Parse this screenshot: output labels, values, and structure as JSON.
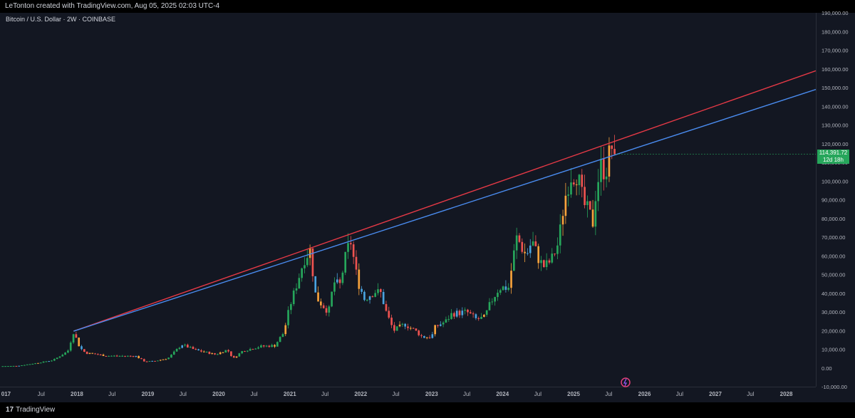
{
  "header": {
    "attribution": "LeTonton created with TradingView.com, Aug 05, 2025 02:03 UTC-4"
  },
  "chart_title": "Bitcoin / U.S. Dollar · 2W · COINBASE",
  "footer": {
    "brand_logo": "17",
    "brand_name": "TradingView"
  },
  "price_label": {
    "price": "114,391.72",
    "countdown": "12d 18h"
  },
  "colors": {
    "background": "#131722",
    "red_line": "#e63946",
    "blue_line": "#4a8cf0",
    "up_candle": "#26a65b",
    "down_candle": "#ef5350",
    "orange_candle": "#f7a23b",
    "blue_candle": "#4aa3df",
    "price_tag": "#26a65b"
  },
  "icons": {
    "watermark": "tradingview-replay-icon"
  },
  "chart_data": {
    "type": "candlestick",
    "y_axis": {
      "range": [
        -10000,
        190000
      ],
      "tick_values": [
        -10000,
        0,
        10000,
        20000,
        30000,
        40000,
        50000,
        60000,
        70000,
        80000,
        90000,
        100000,
        110000,
        120000,
        130000,
        140000,
        150000,
        160000,
        170000,
        180000,
        190000
      ],
      "tick_labels": [
        "-10,000.00",
        "0.00",
        "10,000.00",
        "20,000.00",
        "30,000.00",
        "40,000.00",
        "50,000.00",
        "60,000.00",
        "70,000.00",
        "80,000.00",
        "90,000.00",
        "100,000.00",
        "110,000.00",
        "120,000.00",
        "130,000.00",
        "140,000.00",
        "150,000.00",
        "160,000.00",
        "170,000.00",
        "180,000.00",
        "190,000.00"
      ]
    },
    "x_axis": {
      "range": [
        "2016-12-01",
        "2028-06-01"
      ],
      "ticks": [
        {
          "date": "2017-01-01",
          "label": "017"
        },
        {
          "date": "2017-07-01",
          "label": "Jul"
        },
        {
          "date": "2018-01-01",
          "label": "2018"
        },
        {
          "date": "2018-07-01",
          "label": "Jul"
        },
        {
          "date": "2019-01-01",
          "label": "2019"
        },
        {
          "date": "2019-07-01",
          "label": "Jul"
        },
        {
          "date": "2020-01-01",
          "label": "2020"
        },
        {
          "date": "2020-07-01",
          "label": "Jul"
        },
        {
          "date": "2021-01-01",
          "label": "2021"
        },
        {
          "date": "2021-07-01",
          "label": "Jul"
        },
        {
          "date": "2022-01-01",
          "label": "2022"
        },
        {
          "date": "2022-07-01",
          "label": "Jul"
        },
        {
          "date": "2023-01-01",
          "label": "2023"
        },
        {
          "date": "2023-07-01",
          "label": "Jul"
        },
        {
          "date": "2024-01-01",
          "label": "2024"
        },
        {
          "date": "2024-07-01",
          "label": "Jul"
        },
        {
          "date": "2025-01-01",
          "label": "2025"
        },
        {
          "date": "2025-07-01",
          "label": "Jul"
        },
        {
          "date": "2026-01-01",
          "label": "2026"
        },
        {
          "date": "2026-07-01",
          "label": "Jul"
        },
        {
          "date": "2027-01-01",
          "label": "2027"
        },
        {
          "date": "2027-07-01",
          "label": "Jul"
        },
        {
          "date": "2028-01-01",
          "label": "2028"
        }
      ]
    },
    "trendlines": [
      {
        "color": "red",
        "points": [
          [
            "2017-12-15",
            19700
          ],
          [
            "2028-06-01",
            159000
          ]
        ]
      },
      {
        "color": "blue",
        "points": [
          [
            "2017-12-15",
            19700
          ],
          [
            "2028-06-01",
            149000
          ]
        ]
      }
    ],
    "price_path": [
      [
        "2016-12-01",
        950
      ],
      [
        "2017-03-01",
        1100
      ],
      [
        "2017-06-01",
        2500
      ],
      [
        "2017-09-01",
        4200
      ],
      [
        "2017-11-15",
        9000
      ],
      [
        "2017-12-15",
        19500
      ],
      [
        "2018-01-15",
        11000
      ],
      [
        "2018-02-15",
        8000
      ],
      [
        "2018-04-01",
        7500
      ],
      [
        "2018-06-01",
        6500
      ],
      [
        "2018-09-01",
        6400
      ],
      [
        "2018-11-01",
        6300
      ],
      [
        "2018-12-15",
        3500
      ],
      [
        "2019-02-01",
        3600
      ],
      [
        "2019-04-15",
        5200
      ],
      [
        "2019-06-25",
        12500
      ],
      [
        "2019-09-01",
        9700
      ],
      [
        "2019-12-15",
        7200
      ],
      [
        "2020-02-15",
        9800
      ],
      [
        "2020-03-15",
        5000
      ],
      [
        "2020-05-01",
        9000
      ],
      [
        "2020-08-01",
        11500
      ],
      [
        "2020-10-15",
        12000
      ],
      [
        "2020-12-01",
        19000
      ],
      [
        "2021-01-01",
        33000
      ],
      [
        "2021-02-15",
        48000
      ],
      [
        "2021-03-15",
        58000
      ],
      [
        "2021-04-15",
        63000
      ],
      [
        "2021-05-15",
        38000
      ],
      [
        "2021-06-15",
        34000
      ],
      [
        "2021-07-20",
        30000
      ],
      [
        "2021-08-15",
        46000
      ],
      [
        "2021-09-15",
        44000
      ],
      [
        "2021-10-20",
        62000
      ],
      [
        "2021-11-10",
        68000
      ],
      [
        "2021-12-15",
        47000
      ],
      [
        "2022-01-20",
        37000
      ],
      [
        "2022-03-15",
        41000
      ],
      [
        "2022-04-15",
        40000
      ],
      [
        "2022-05-15",
        29000
      ],
      [
        "2022-06-20",
        20000
      ],
      [
        "2022-08-15",
        23500
      ],
      [
        "2022-10-15",
        19500
      ],
      [
        "2022-11-15",
        16500
      ],
      [
        "2023-01-01",
        16600
      ],
      [
        "2023-01-20",
        22000
      ],
      [
        "2023-03-15",
        25000
      ],
      [
        "2023-04-15",
        29000
      ],
      [
        "2023-07-01",
        30000
      ],
      [
        "2023-08-20",
        26000
      ],
      [
        "2023-10-01",
        27000
      ],
      [
        "2023-11-01",
        35000
      ],
      [
        "2023-12-15",
        43000
      ],
      [
        "2024-02-01",
        43000
      ],
      [
        "2024-03-01",
        62000
      ],
      [
        "2024-03-15",
        70000
      ],
      [
        "2024-05-01",
        60000
      ],
      [
        "2024-06-01",
        68000
      ],
      [
        "2024-07-10",
        57000
      ],
      [
        "2024-08-05",
        54000
      ],
      [
        "2024-09-10",
        58000
      ],
      [
        "2024-10-15",
        67000
      ],
      [
        "2024-11-15",
        90000
      ],
      [
        "2024-12-15",
        103000
      ],
      [
        "2025-01-20",
        104000
      ],
      [
        "2025-02-20",
        88000
      ],
      [
        "2025-03-20",
        83000
      ],
      [
        "2025-04-10",
        78000
      ],
      [
        "2025-04-25",
        94000
      ],
      [
        "2025-05-20",
        108000
      ],
      [
        "2025-06-15",
        105000
      ],
      [
        "2025-07-14",
        119000
      ],
      [
        "2025-08-05",
        114391
      ]
    ]
  }
}
